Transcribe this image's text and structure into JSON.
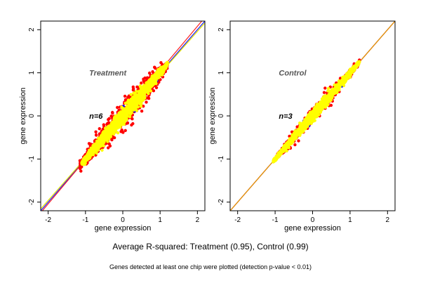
{
  "chart_data": [
    {
      "type": "scatter",
      "title": "Treatment",
      "n_label": "n=6",
      "xlabel": "gene expression",
      "ylabel": "gene expression",
      "xlim": [
        -2.2,
        2.2
      ],
      "ylim": [
        -2.2,
        2.2
      ],
      "x_ticks": [
        -2,
        -1,
        0,
        1,
        2
      ],
      "y_ticks": [
        -2,
        -1,
        0,
        1,
        2
      ],
      "title_pos": [
        -0.9,
        1.0
      ],
      "n_label_pos": [
        -0.9,
        0.0
      ],
      "grid": false,
      "reference_lines": [
        {
          "name": "identity",
          "color": "#1a1aff",
          "slope": 1.0,
          "intercept": 0.0
        },
        {
          "name": "fit",
          "color": "#ff2020",
          "slope": 1.03,
          "intercept": 0.02
        },
        {
          "name": "fit-2",
          "color": "#e6e600",
          "slope": 0.98,
          "intercept": 0.0
        }
      ],
      "series": [
        {
          "color": "#ff0000",
          "x_range": [
            -1.15,
            1.2
          ],
          "spread": 0.32,
          "points": 900
        },
        {
          "color": "#0000ff",
          "x_range": [
            -1.1,
            1.0
          ],
          "spread": 0.25,
          "points": 25
        },
        {
          "color": "#ffff00",
          "x_range": [
            -1.1,
            1.2
          ],
          "spread": 0.18,
          "points": 1500
        }
      ]
    },
    {
      "type": "scatter",
      "title": "Control",
      "n_label": "n=3",
      "xlabel": "gene expression",
      "ylabel": "gene expression",
      "xlim": [
        -2.2,
        2.2
      ],
      "ylim": [
        -2.2,
        2.2
      ],
      "x_ticks": [
        -2,
        -1,
        0,
        1,
        2
      ],
      "y_ticks": [
        -2,
        -1,
        0,
        1,
        2
      ],
      "title_pos": [
        -0.9,
        1.0
      ],
      "n_label_pos": [
        -0.9,
        0.0
      ],
      "grid": false,
      "reference_lines": [
        {
          "name": "identity",
          "color": "#1a1aff",
          "slope": 1.0,
          "intercept": 0.0
        },
        {
          "name": "fit",
          "color": "#ff2020",
          "slope": 1.0,
          "intercept": 0.0
        },
        {
          "name": "fit-2",
          "color": "#e6a000",
          "slope": 1.0,
          "intercept": 0.0
        }
      ],
      "series": [
        {
          "color": "#ff0000",
          "x_range": [
            -1.0,
            1.25
          ],
          "spread": 0.18,
          "points": 450
        },
        {
          "color": "#0000ff",
          "x_range": [
            -1.0,
            1.0
          ],
          "spread": 0.15,
          "points": 12
        },
        {
          "color": "#ffff00",
          "x_range": [
            -1.05,
            1.25
          ],
          "spread": 0.12,
          "points": 1300
        }
      ]
    }
  ],
  "footer": {
    "main": "Average R-squared: Treatment (0.95), Control (0.99)",
    "note": "Genes detected at least one chip were plotted (detection p-value < 0.01)"
  }
}
